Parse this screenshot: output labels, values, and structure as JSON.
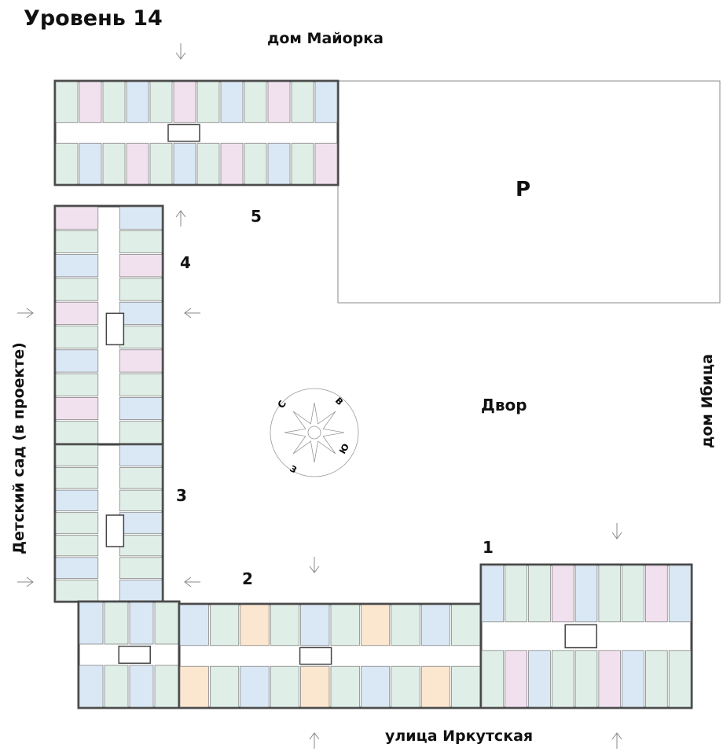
{
  "title": "Уровень 14",
  "labels": {
    "north": "дом Майорка",
    "south": "улица Иркутская",
    "east": "дом Ибица",
    "west": "Детский сад (в проекте)",
    "yard": "Двор",
    "parking": "P"
  },
  "sections": [
    "1",
    "2",
    "3",
    "4",
    "5"
  ],
  "compass": {
    "n": "С",
    "e": "В",
    "s": "Ю",
    "w": "З"
  },
  "colors": {
    "studio": "#dae8f5",
    "one_room": "#dfeee6",
    "two_room": "#f1e1ee",
    "three_room": "#fbe6d0",
    "wall": "#444444",
    "corridor": "#ffffff"
  }
}
